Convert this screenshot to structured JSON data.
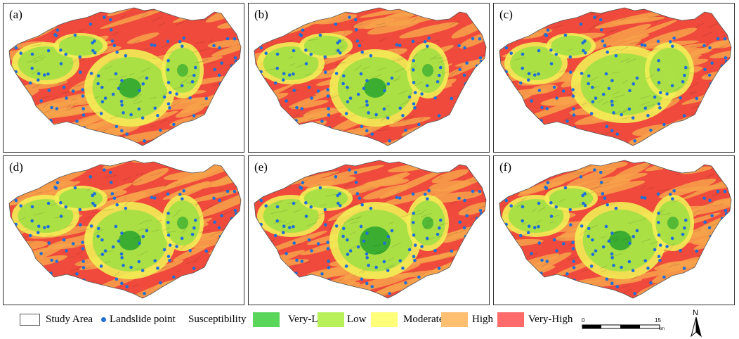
{
  "panels": [
    {
      "label": "(a)",
      "variant": "a"
    },
    {
      "label": "(b)",
      "variant": "a"
    },
    {
      "label": "(c)",
      "variant": "c"
    },
    {
      "label": "(d)",
      "variant": "a"
    },
    {
      "label": "(e)",
      "variant": "e"
    },
    {
      "label": "(f)",
      "variant": "a"
    }
  ],
  "legend": {
    "study_area": "Study Area",
    "landslide": "Landslide point",
    "susceptibility_title": "Susceptibility",
    "classes": [
      {
        "label": "Very-Low",
        "color": "#5ad65a"
      },
      {
        "label": "Low",
        "color": "#b8f05a"
      },
      {
        "label": "Moderate",
        "color": "#ffff7a"
      },
      {
        "label": "High",
        "color": "#ffbf70"
      },
      {
        "label": "Very-High",
        "color": "#ff6a6a"
      }
    ]
  },
  "scale_bar": {
    "zero": "0",
    "max": "15",
    "unit": "km"
  },
  "north_arrow": {
    "label": "N"
  },
  "colors": {
    "landslide_point": "#1f6fd6",
    "very_low": "#2fa82f",
    "low": "#a6df45",
    "moderate": "#f2ee55",
    "high": "#f7a24a",
    "very_high": "#ef4a3c"
  }
}
